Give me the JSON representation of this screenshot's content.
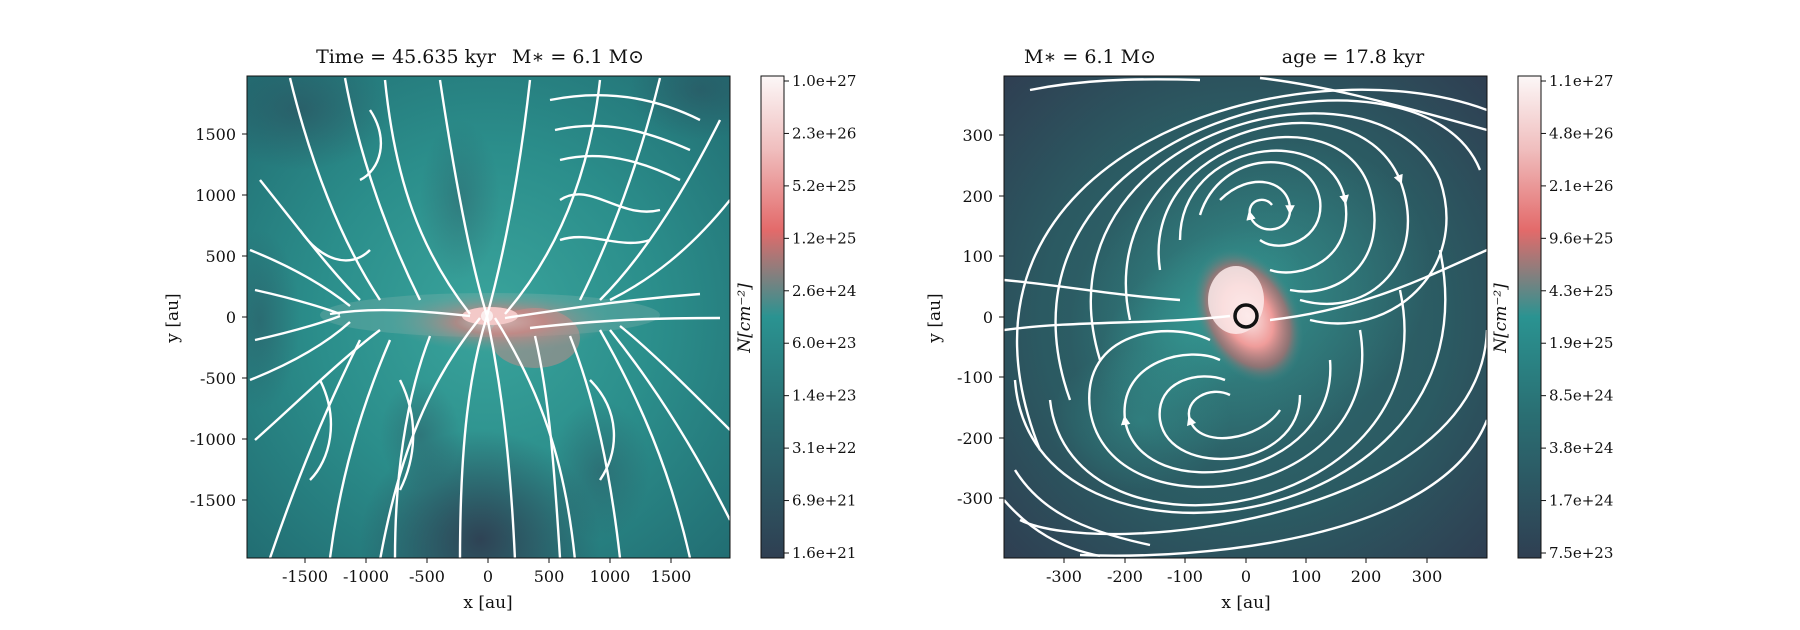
{
  "chart_data": [
    {
      "type": "heatmap",
      "title_left": "Time = 45.635 kyr",
      "title_right": "M$_*$ = 6.1 M$_\\odot$",
      "title_left_display": "Time = 45.635 kyr",
      "title_right_display": "M∗ = 6.1 M⊙",
      "xlabel": "x [au]",
      "ylabel": "y [au]",
      "xlim": [
        -2000,
        2000
      ],
      "ylim": [
        -2000,
        2000
      ],
      "xticks": [
        -1500,
        -1000,
        -500,
        0,
        500,
        1000,
        1500
      ],
      "yticks": [
        1500,
        1000,
        500,
        0,
        -500,
        -1000,
        -1500
      ],
      "colorbar": {
        "label": "N[cm⁻²]",
        "scale": "log",
        "ticks": [
          "1.0e+27",
          "2.3e+26",
          "5.2e+25",
          "1.2e+25",
          "2.6e+24",
          "6.0e+23",
          "1.4e+23",
          "3.1e+22",
          "6.9e+21",
          "1.6e+21"
        ]
      },
      "overlay": "magnetic field streamlines (white)",
      "colors": {
        "low": "#2f3f52",
        "mid": "#2a9391",
        "high_red": "#d96060",
        "top": "#fbf3f3"
      }
    },
    {
      "type": "heatmap",
      "title_left": "M$_*$ = 6.1 M$_\\odot$",
      "title_right": "age = 17.8 kyr",
      "title_left_display": "M∗ = 6.1 M⊙",
      "title_right_display": "age = 17.8 kyr",
      "xlabel": "x [au]",
      "ylabel": "y [au]",
      "xlim": [
        -400,
        400
      ],
      "ylim": [
        -400,
        400
      ],
      "xticks": [
        -300,
        -200,
        -100,
        0,
        100,
        200,
        300
      ],
      "yticks": [
        300,
        200,
        100,
        0,
        -100,
        -200,
        -300
      ],
      "colorbar": {
        "label": "N[cm⁻²]",
        "scale": "log",
        "ticks": [
          "1.1e+27",
          "4.8e+26",
          "2.1e+26",
          "9.6e+25",
          "4.3e+25",
          "1.9e+25",
          "8.5e+24",
          "3.8e+24",
          "1.7e+24",
          "7.5e+23"
        ]
      },
      "overlay": "magnetic field streamlines (white)",
      "colors": {
        "low": "#2f3f52",
        "mid": "#2a9391",
        "high_red": "#d96060",
        "top": "#fbf3f3"
      }
    }
  ]
}
